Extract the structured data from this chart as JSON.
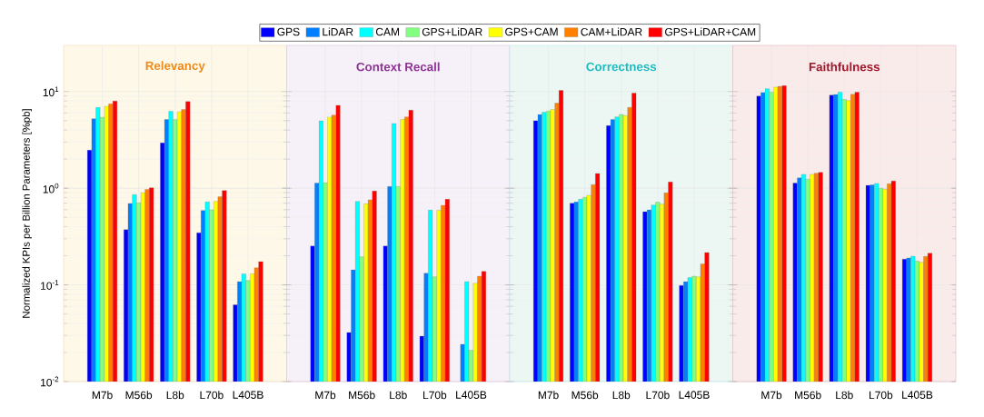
{
  "chart_data": [
    {
      "type": "bar",
      "title": "Relevancy",
      "ylabel": "Normalized KPIs per Billion Parameters [%pb]",
      "categories": [
        "M7b",
        "M56b",
        "L8b",
        "L70b",
        "L405B"
      ],
      "log": true,
      "grid": true,
      "legend": "top",
      "ylim": [
        0.01,
        30
      ],
      "yticks": [
        {
          "value": 0.01,
          "label": "10$^{-2}$"
        },
        {
          "value": 0.1,
          "label": "10$^{-1}$"
        },
        {
          "value": 1,
          "label": "10$^{0}$"
        },
        {
          "value": 10,
          "label": "10$^{1}$"
        }
      ],
      "series": [
        {
          "name": "GPS",
          "color": "#0000ff",
          "values": [
            2.48,
            0.372,
            2.95,
            0.346,
            0.0624
          ]
        },
        {
          "name": "LiDAR",
          "color": "#0080ff",
          "values": [
            5.24,
            0.695,
            5.13,
            0.589,
            0.108
          ]
        },
        {
          "name": "CAM",
          "color": "#00ffff",
          "values": [
            6.85,
            0.859,
            6.24,
            0.722,
            0.13
          ]
        },
        {
          "name": "GPS+LiDAR",
          "color": "#80ff80",
          "values": [
            5.43,
            0.706,
            5.13,
            0.597,
            0.111
          ]
        },
        {
          "name": "GPS+CAM",
          "color": "#ffff00",
          "values": [
            7.06,
            0.897,
            6.19,
            0.731,
            0.13
          ]
        },
        {
          "name": "CAM+LiDAR",
          "color": "#ff8000",
          "values": [
            7.48,
            0.971,
            6.52,
            0.816,
            0.15
          ]
        },
        {
          "name": "GPS+LiDAR+CAM",
          "color": "#ff0000",
          "values": [
            7.98,
            1.01,
            7.87,
            0.944,
            0.174
          ]
        }
      ]
    },
    {
      "type": "bar",
      "title": "Context Recall",
      "categories": [
        "M7b",
        "M56b",
        "L8b",
        "L70b",
        "L405B"
      ],
      "log": true,
      "grid": true,
      "tick_labels": "x",
      "ylim": [
        0.01,
        30
      ],
      "yticks": [
        0.01,
        0.1,
        1,
        10
      ],
      "series": [
        {
          "color": "#0000ff",
          "values": [
            0.253,
            0.0322,
            0.253,
            0.0295,
            null
          ]
        },
        {
          "color": "#0080ff",
          "values": [
            1.13,
            0.143,
            1.04,
            0.132,
            0.0243
          ]
        },
        {
          "color": "#00ffff",
          "values": [
            4.98,
            0.731,
            4.67,
            0.593,
            0.108
          ]
        },
        {
          "color": "#80ff80",
          "values": [
            1.14,
            0.195,
            1.04,
            0.121,
            0.0211
          ]
        },
        {
          "color": "#ffff00",
          "values": [
            5.47,
            0.69,
            5.13,
            0.59,
            0.104
          ]
        },
        {
          "color": "#ff8000",
          "values": [
            5.71,
            0.759,
            5.47,
            0.665,
            0.123
          ]
        },
        {
          "color": "#ff0000",
          "values": [
            7.21,
            0.937,
            6.43,
            0.769,
            0.138
          ]
        }
      ]
    },
    {
      "type": "bar",
      "title": "Correctness",
      "categories": [
        "M7b",
        "M56b",
        "L8b",
        "L70b",
        "L405B"
      ],
      "log": true,
      "grid": true,
      "tick_labels": "x",
      "ylim": [
        0.01,
        30
      ],
      "yticks": [
        0.01,
        0.1,
        1,
        10
      ],
      "series": [
        {
          "color": "#0000ff",
          "values": [
            5.01,
            0.7,
            4.44,
            0.571,
            0.0986
          ]
        },
        {
          "color": "#0080ff",
          "values": [
            5.8,
            0.721,
            5.13,
            0.597,
            0.108
          ]
        },
        {
          "color": "#00ffff",
          "values": [
            6.1,
            0.769,
            5.47,
            0.67,
            0.119
          ]
        },
        {
          "color": "#80ff80",
          "values": [
            6.28,
            0.804,
            5.8,
            0.716,
            0.123
          ]
        },
        {
          "color": "#ffff00",
          "values": [
            6.52,
            0.846,
            5.63,
            0.685,
            0.121
          ]
        },
        {
          "color": "#ff8000",
          "values": [
            7.59,
            1.09,
            6.85,
            0.897,
            0.165
          ]
        },
        {
          "color": "#ff0000",
          "values": [
            10.3,
            1.42,
            9.64,
            1.16,
            0.216
          ]
        }
      ]
    },
    {
      "type": "bar",
      "title": "Faithfulness",
      "categories": [
        "M7b",
        "M56b",
        "L8b",
        "L70b",
        "L405B"
      ],
      "log": true,
      "grid": true,
      "tick_labels": "x",
      "ylim": [
        0.01,
        30
      ],
      "yticks": [
        0.01,
        0.1,
        1,
        10
      ],
      "series": [
        {
          "color": "#0000ff",
          "values": [
            8.97,
            1.13,
            9.23,
            1.07,
            0.185
          ]
        },
        {
          "color": "#0080ff",
          "values": [
            9.79,
            1.28,
            9.3,
            1.08,
            0.19
          ]
        },
        {
          "color": "#00ffff",
          "values": [
            10.7,
            1.39,
            9.86,
            1.12,
            0.198
          ]
        },
        {
          "color": "#80ff80",
          "values": [
            9.86,
            1.24,
            8.28,
            1.0,
            0.176
          ]
        },
        {
          "color": "#ffff00",
          "values": [
            11.1,
            1.39,
            8.04,
            0.979,
            0.171
          ]
        },
        {
          "color": "#ff8000",
          "values": [
            11.3,
            1.43,
            9.37,
            1.11,
            0.197
          ]
        },
        {
          "color": "#ff0000",
          "values": [
            11.5,
            1.46,
            9.86,
            1.19,
            0.213
          ]
        }
      ]
    }
  ]
}
